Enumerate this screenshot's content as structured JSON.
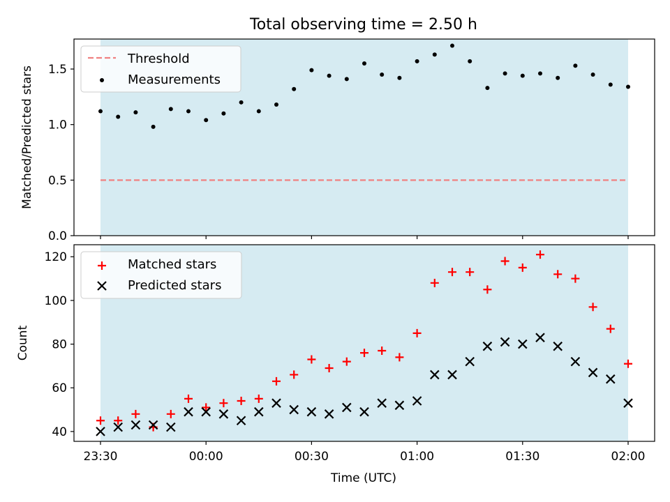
{
  "figure": {
    "title": "Total observing time = 2.50 h",
    "xlabel": "Time (UTC)"
  },
  "colors": {
    "shade": "#add8e6",
    "threshold": "#f08080",
    "measurements": "#000000",
    "matched": "#ff0000",
    "predicted": "#000000"
  },
  "x_ticks": [
    {
      "label": "23:30",
      "t": 0
    },
    {
      "label": "00:00",
      "t": 30
    },
    {
      "label": "00:30",
      "t": 60
    },
    {
      "label": "01:00",
      "t": 90
    },
    {
      "label": "01:30",
      "t": 120
    },
    {
      "label": "02:00",
      "t": 150
    }
  ],
  "chart_data": [
    {
      "type": "scatter",
      "ylabel": "Matched/Predicted stars",
      "ylim": [
        0,
        1.77
      ],
      "yticks": [
        "0.0",
        "0.5",
        "1.0",
        "1.5"
      ],
      "shaded_interval": [
        "23:30",
        "02:00"
      ],
      "threshold": {
        "name": "Threshold",
        "value": 0.5,
        "style": "dashed"
      },
      "legend": "upper-left",
      "series": [
        {
          "name": "Measurements",
          "marker": "dot",
          "x": [
            "23:30",
            "23:35",
            "23:40",
            "23:45",
            "23:50",
            "23:55",
            "00:00",
            "00:05",
            "00:10",
            "00:15",
            "00:20",
            "00:25",
            "00:30",
            "00:35",
            "00:40",
            "00:45",
            "00:50",
            "00:55",
            "01:00",
            "01:05",
            "01:10",
            "01:15",
            "01:20",
            "01:25",
            "01:30",
            "01:35",
            "01:40",
            "01:45",
            "01:50",
            "01:55",
            "02:00"
          ],
          "values": [
            1.12,
            1.07,
            1.11,
            0.98,
            1.14,
            1.12,
            1.04,
            1.1,
            1.2,
            1.12,
            1.18,
            1.32,
            1.49,
            1.44,
            1.41,
            1.55,
            1.45,
            1.42,
            1.57,
            1.63,
            1.71,
            1.57,
            1.33,
            1.46,
            1.44,
            1.46,
            1.42,
            1.53,
            1.45,
            1.36,
            1.34
          ]
        }
      ]
    },
    {
      "type": "scatter",
      "ylabel": "Count",
      "ylim": [
        35.5,
        125.5
      ],
      "yticks": [
        "40",
        "60",
        "80",
        "100",
        "120"
      ],
      "shaded_interval": [
        "23:30",
        "02:00"
      ],
      "legend": "upper-left",
      "series": [
        {
          "name": "Matched stars",
          "marker": "plus",
          "x": [
            "23:30",
            "23:35",
            "23:40",
            "23:45",
            "23:50",
            "23:55",
            "00:00",
            "00:05",
            "00:10",
            "00:15",
            "00:20",
            "00:25",
            "00:30",
            "00:35",
            "00:40",
            "00:45",
            "00:50",
            "00:55",
            "01:00",
            "01:05",
            "01:10",
            "01:15",
            "01:20",
            "01:25",
            "01:30",
            "01:35",
            "01:40",
            "01:45",
            "01:50",
            "01:55",
            "02:00"
          ],
          "values": [
            45,
            45,
            48,
            42,
            48,
            55,
            51,
            53,
            54,
            55,
            63,
            66,
            73,
            69,
            72,
            76,
            77,
            74,
            85,
            108,
            113,
            113,
            105,
            118,
            115,
            121,
            112,
            110,
            97,
            87,
            71
          ]
        },
        {
          "name": "Predicted stars",
          "marker": "x",
          "x": [
            "23:30",
            "23:35",
            "23:40",
            "23:45",
            "23:50",
            "23:55",
            "00:00",
            "00:05",
            "00:10",
            "00:15",
            "00:20",
            "00:25",
            "00:30",
            "00:35",
            "00:40",
            "00:45",
            "00:50",
            "00:55",
            "01:00",
            "01:05",
            "01:10",
            "01:15",
            "01:20",
            "01:25",
            "01:30",
            "01:35",
            "01:40",
            "01:45",
            "01:50",
            "01:55",
            "02:00"
          ],
          "values": [
            40,
            42,
            43,
            43,
            42,
            49,
            49,
            48,
            45,
            49,
            53,
            50,
            49,
            48,
            51,
            49,
            53,
            52,
            54,
            66,
            66,
            72,
            79,
            81,
            80,
            83,
            79,
            72,
            67,
            64,
            53
          ]
        }
      ]
    }
  ]
}
